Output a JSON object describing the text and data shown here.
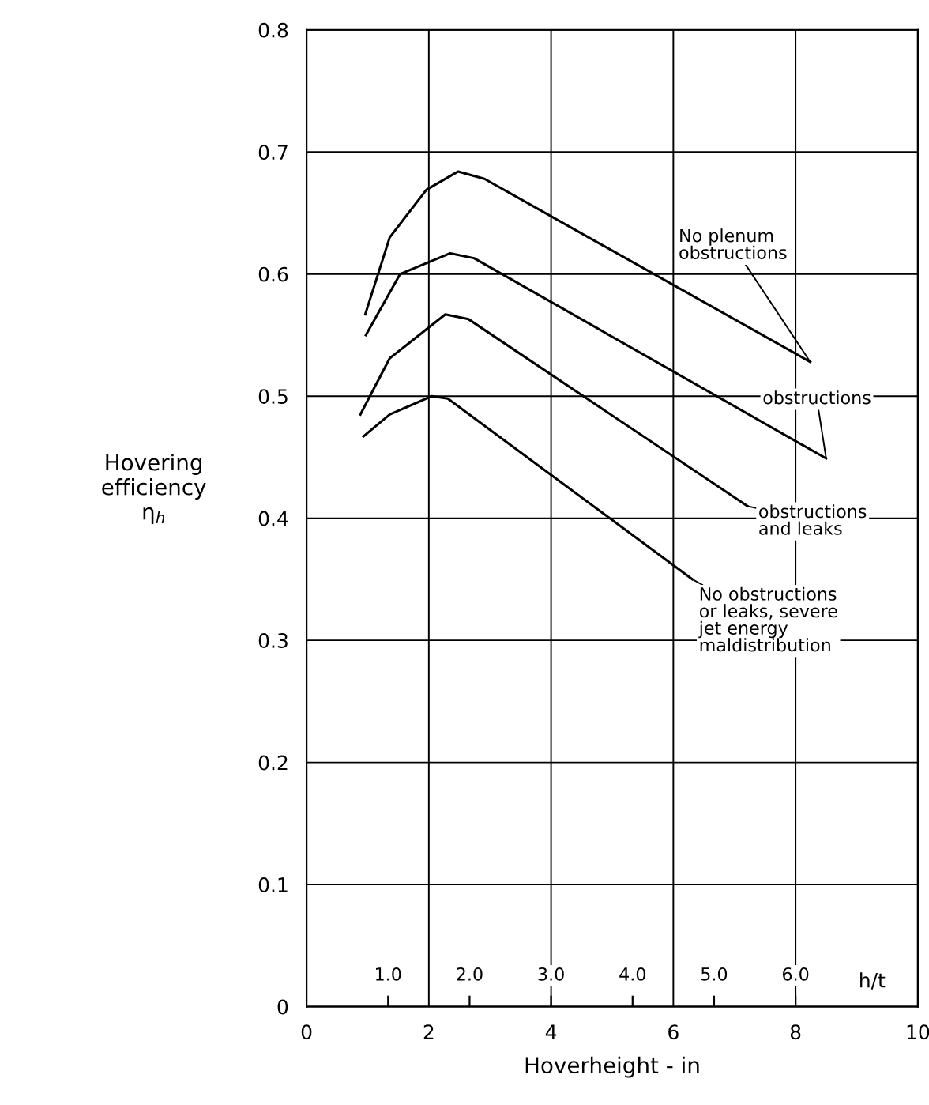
{
  "chart_data": {
    "type": "line",
    "xlabel": "Hoverheight - in",
    "ylabel": "Hovering\nefficiency\nη$_{h}$",
    "x2label": "h/t",
    "xlim": [
      0,
      10
    ],
    "xticks": [
      0,
      2,
      4,
      6,
      8,
      10
    ],
    "ylim": [
      0,
      0.8
    ],
    "yticks": [
      0,
      0.1,
      0.2,
      0.3,
      0.4,
      0.5,
      0.6,
      0.7,
      0.8
    ],
    "x2lim": [
      0,
      7.5
    ],
    "x2ticks": [
      {
        "value": 1,
        "label": "1.0"
      },
      {
        "value": 2,
        "label": "2.0"
      },
      {
        "value": 3,
        "label": "3.0"
      },
      {
        "value": 4,
        "label": "4.0"
      },
      {
        "value": 5,
        "label": "5.0"
      },
      {
        "value": 6,
        "label": "6.0"
      }
    ],
    "grid": true,
    "line_style": "solid",
    "marker": "none",
    "series": [
      {
        "color": "#000000",
        "x": [
          0.96,
          1.36,
          1.96,
          2.48,
          2.91,
          8.24
        ],
        "values": [
          0.567,
          0.63,
          0.669,
          0.684,
          0.678,
          0.528
        ]
      },
      {
        "color": "#000000",
        "x": [
          0.97,
          1.53,
          2.35,
          2.74,
          8.5
        ],
        "values": [
          0.55,
          0.6,
          0.617,
          0.613,
          0.449
        ]
      },
      {
        "color": "#000000",
        "x": [
          0.88,
          1.36,
          2.27,
          2.65,
          7.21
        ],
        "values": [
          0.485,
          0.531,
          0.567,
          0.563,
          0.41
        ]
      },
      {
        "color": "#000000",
        "x": [
          0.93,
          1.36,
          2.05,
          2.31,
          6.31
        ],
        "values": [
          0.467,
          0.485,
          0.5,
          0.498,
          0.35
        ]
      }
    ],
    "annotations": [
      {
        "text": "No plenum\nobstructions",
        "x": 8.24,
        "y": 0.528
      },
      {
        "text": "obstructions",
        "x": 8.5,
        "y": 0.449
      },
      {
        "text": "obstructions\nand leaks",
        "x": 7.21,
        "y": 0.41
      },
      {
        "text": "No obstructions\nor leaks, severe\njet energy\nmaldistribution",
        "x": 6.31,
        "y": 0.35
      }
    ]
  }
}
